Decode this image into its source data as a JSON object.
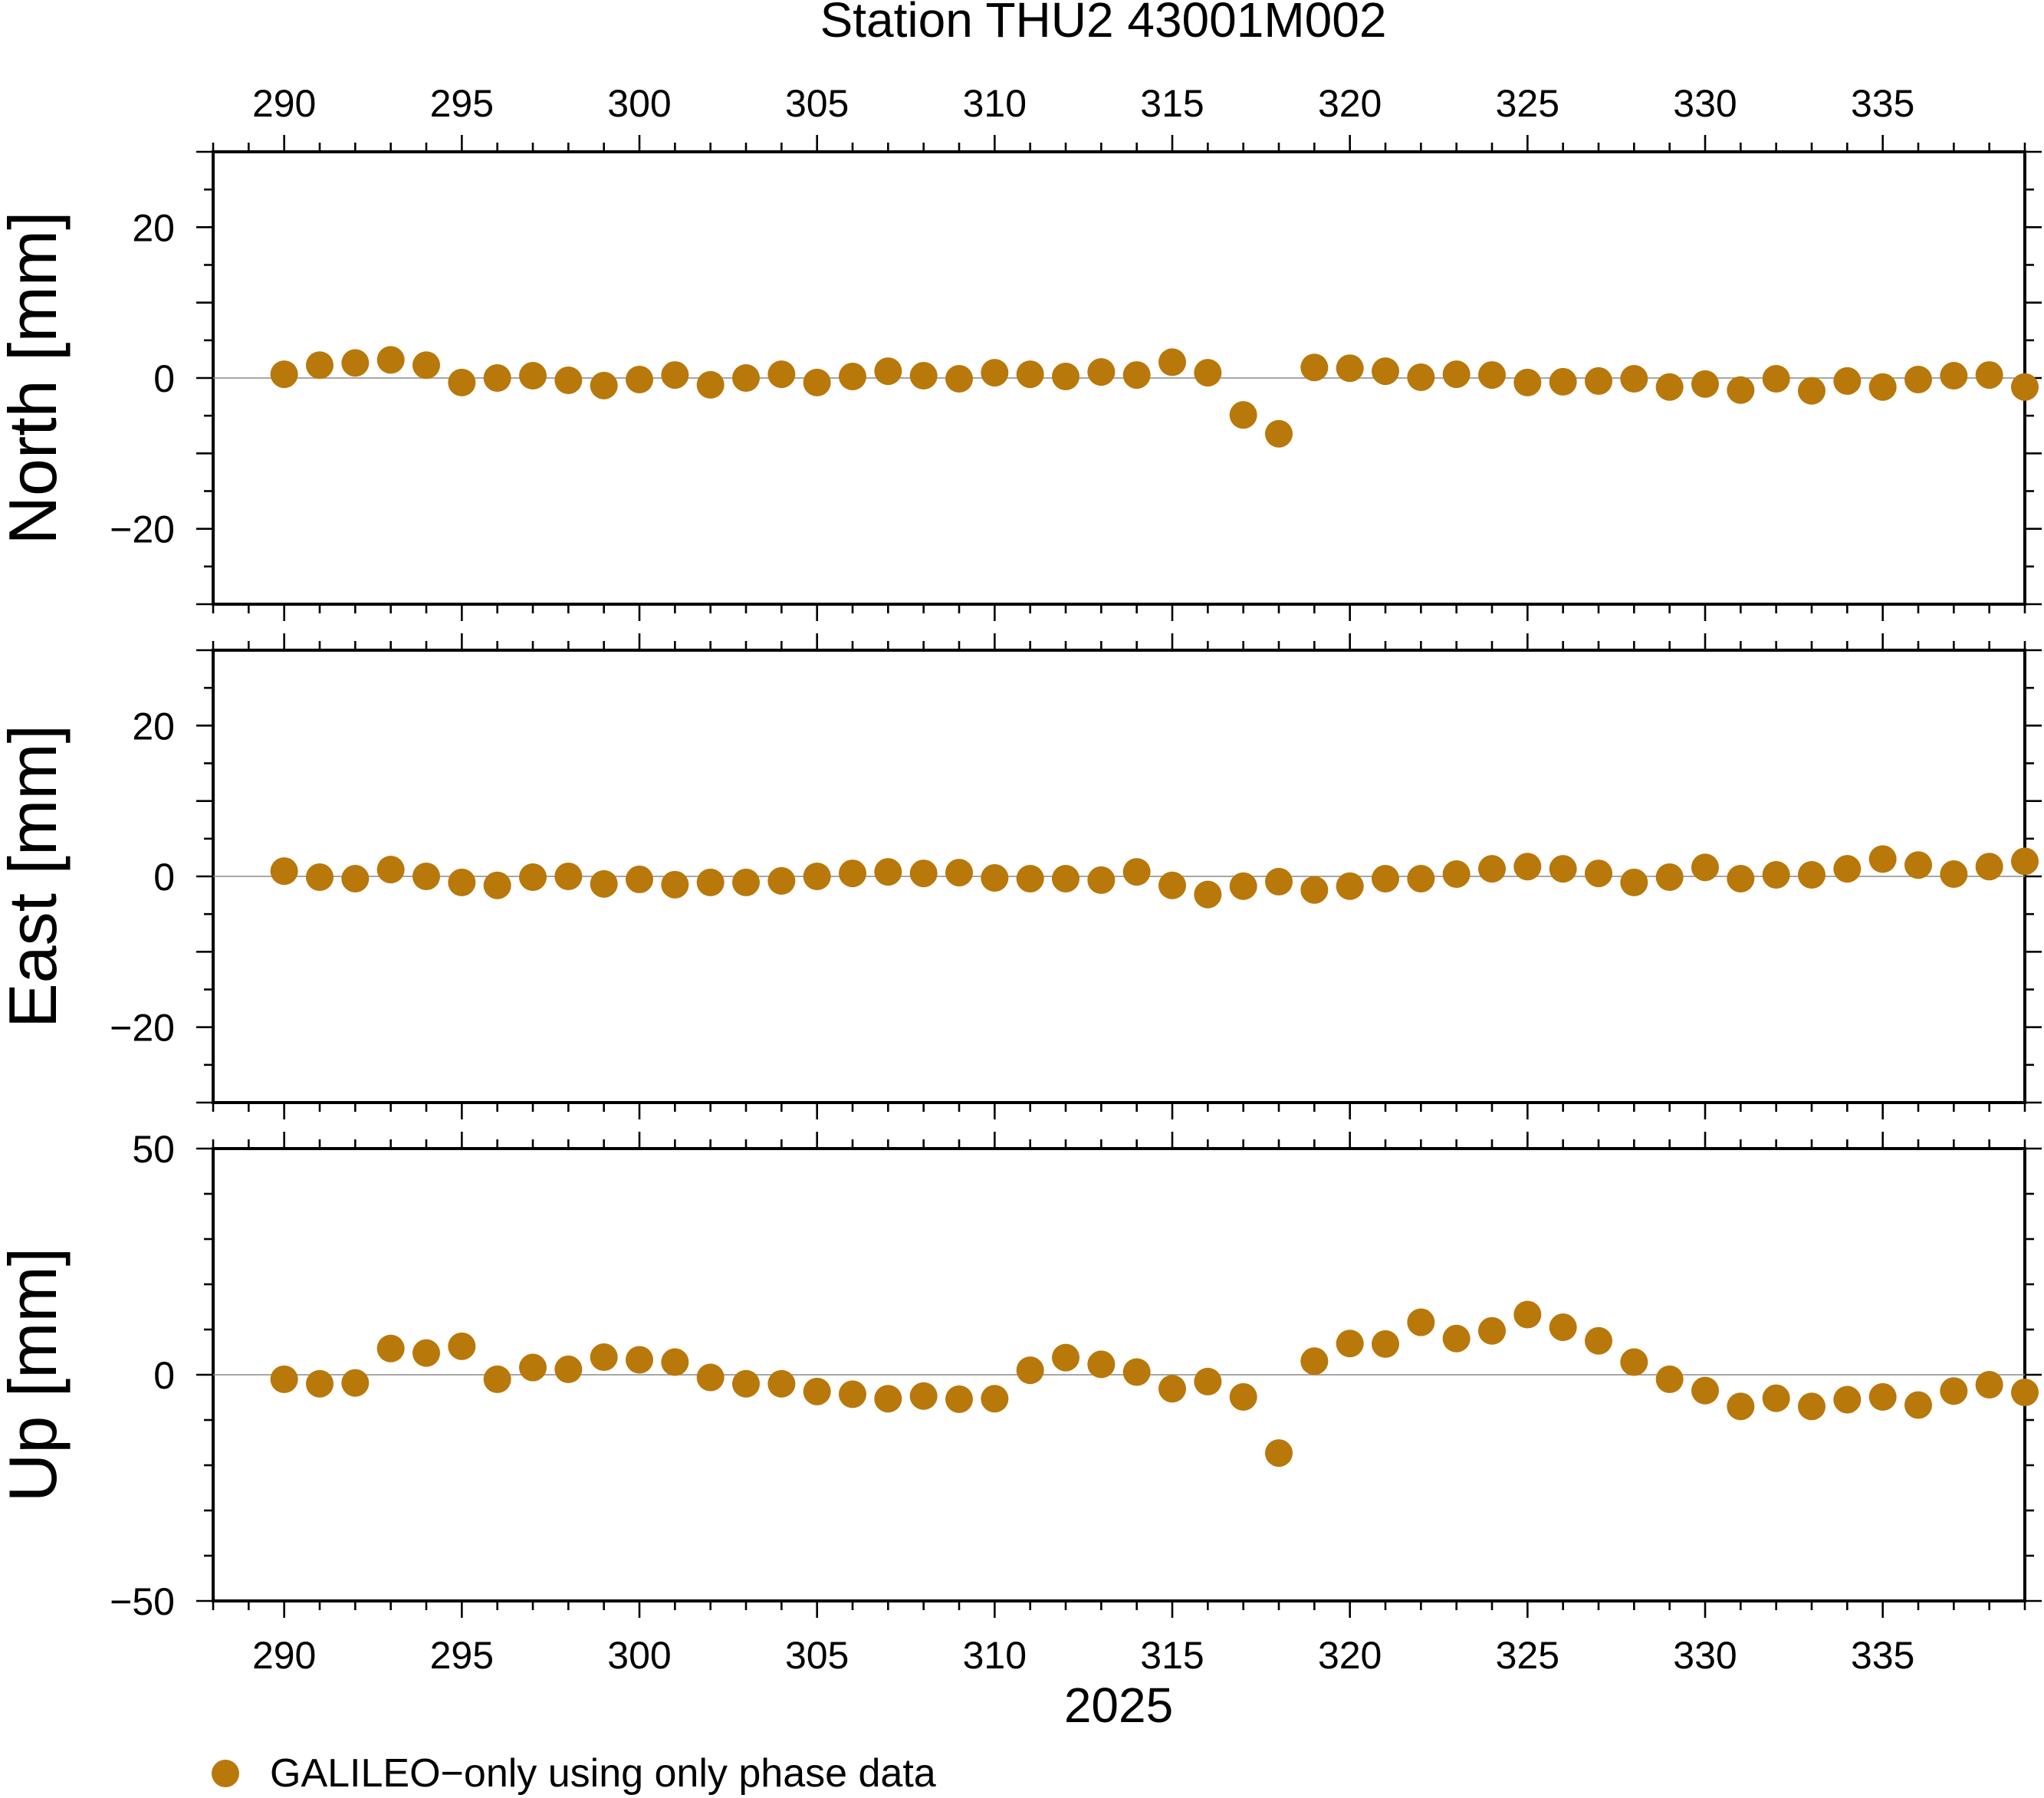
{
  "title": "Station THU2 43001M002",
  "xlabel": "2025",
  "x_ticks": [
    "290",
    "295",
    "300",
    "305",
    "310",
    "315",
    "320",
    "325",
    "330",
    "335"
  ],
  "legend": {
    "label": "GALILEO−only using only phase data",
    "color": "#B8780A",
    "placement": "bottom-left"
  },
  "chart_data": [
    {
      "type": "scatter",
      "ylabel": "North [mm]",
      "xlim": [
        288,
        339
      ],
      "ylim": [
        -30,
        30
      ],
      "y_ticks": [
        "20",
        "0",
        "−20"
      ],
      "x": [
        290,
        291,
        292,
        293,
        294,
        295,
        296,
        297,
        298,
        299,
        300,
        301,
        302,
        303,
        304,
        305,
        306,
        307,
        308,
        309,
        310,
        311,
        312,
        313,
        314,
        315,
        316,
        317,
        318,
        319,
        320,
        321,
        322,
        323,
        324,
        325,
        326,
        327,
        328,
        329,
        330,
        331,
        332,
        333,
        334,
        335,
        336,
        337,
        338,
        339
      ],
      "values": [
        0.5,
        1.7,
        2.0,
        2.4,
        1.7,
        -0.6,
        0.0,
        0.3,
        -0.3,
        -1.0,
        -0.2,
        0.4,
        -0.9,
        0.0,
        0.5,
        -0.6,
        0.2,
        0.9,
        0.3,
        -0.1,
        0.7,
        0.5,
        0.2,
        0.8,
        0.4,
        2.1,
        0.7,
        -4.9,
        -7.4,
        1.4,
        1.3,
        0.9,
        0.1,
        0.5,
        0.4,
        -0.6,
        -0.5,
        -0.4,
        -0.1,
        -1.2,
        -0.8,
        -1.6,
        -0.1,
        -1.7,
        -0.4,
        -1.2,
        -0.2,
        0.3,
        0.4,
        -1.2
      ]
    },
    {
      "type": "scatter",
      "ylabel": "East [mm]",
      "xlim": [
        288,
        339
      ],
      "ylim": [
        -30,
        30
      ],
      "y_ticks": [
        "20",
        "0",
        "−20"
      ],
      "x": [
        290,
        291,
        292,
        293,
        294,
        295,
        296,
        297,
        298,
        299,
        300,
        301,
        302,
        303,
        304,
        305,
        306,
        307,
        308,
        309,
        310,
        311,
        312,
        313,
        314,
        315,
        316,
        317,
        318,
        319,
        320,
        321,
        322,
        323,
        324,
        325,
        326,
        327,
        328,
        329,
        330,
        331,
        332,
        333,
        334,
        335,
        336,
        337,
        338,
        339
      ],
      "values": [
        0.7,
        -0.1,
        -0.3,
        0.9,
        0.0,
        -0.8,
        -1.2,
        -0.1,
        0.0,
        -1.0,
        -0.4,
        -1.1,
        -0.8,
        -0.8,
        -0.6,
        0.0,
        0.4,
        0.6,
        0.4,
        0.5,
        -0.2,
        -0.3,
        -0.3,
        -0.5,
        0.6,
        -1.2,
        -2.4,
        -1.3,
        -0.7,
        -1.8,
        -1.3,
        -0.3,
        -0.3,
        0.3,
        1.0,
        1.3,
        1.0,
        0.4,
        -0.8,
        -0.1,
        1.2,
        -0.3,
        0.2,
        0.2,
        1.0,
        2.3,
        1.5,
        0.3,
        1.3,
        2.0
      ]
    },
    {
      "type": "scatter",
      "ylabel": "Up [mm]",
      "xlim": [
        288,
        339
      ],
      "ylim": [
        -50,
        50
      ],
      "y_ticks": [
        "50",
        "0",
        "−50"
      ],
      "x": [
        290,
        291,
        292,
        293,
        294,
        295,
        296,
        297,
        298,
        299,
        300,
        301,
        302,
        303,
        304,
        305,
        306,
        307,
        308,
        309,
        310,
        311,
        312,
        313,
        314,
        315,
        316,
        317,
        318,
        319,
        320,
        321,
        322,
        323,
        324,
        325,
        326,
        327,
        328,
        329,
        330,
        331,
        332,
        333,
        334,
        335,
        336,
        337,
        338,
        339
      ],
      "values": [
        -1.0,
        -2.0,
        -1.8,
        5.8,
        4.8,
        6.3,
        -1.0,
        1.6,
        1.2,
        3.9,
        3.3,
        2.8,
        -0.6,
        -2.0,
        -2.0,
        -3.7,
        -4.3,
        -5.3,
        -4.7,
        -5.4,
        -5.3,
        1.0,
        3.8,
        2.3,
        0.6,
        -3.1,
        -1.5,
        -4.9,
        -17.3,
        3.0,
        6.9,
        6.8,
        11.6,
        8.0,
        9.7,
        13.3,
        10.5,
        7.5,
        2.8,
        -1.0,
        -3.5,
        -7.0,
        -5.2,
        -7.0,
        -5.5,
        -4.9,
        -6.7,
        -3.6,
        -2.2,
        -3.9
      ]
    }
  ]
}
